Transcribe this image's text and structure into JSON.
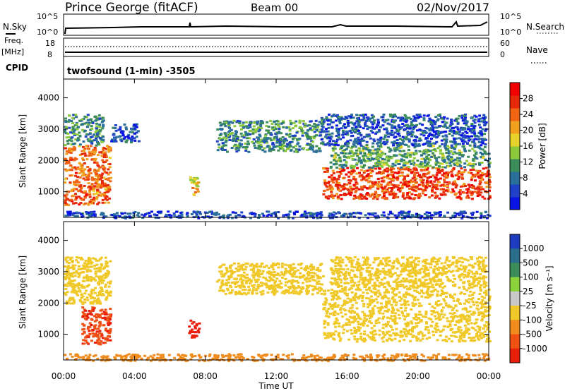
{
  "header": {
    "station": "Prince George (fitACF)",
    "beam": "Beam 00",
    "date": "02/Nov/2017"
  },
  "top_panels": {
    "nsky_label": "N.Sky",
    "nsearch_label": "N.Search",
    "noise_left_ticks": [
      "10^5",
      "10^0"
    ],
    "noise_right_ticks": [
      "10^5",
      "10^0"
    ],
    "freq_label_1": "Freq.",
    "freq_label_2": "[MHz]",
    "freq_ticks": [
      "18",
      "8"
    ],
    "nave_label": "Nave",
    "nave_ticks": [
      "60",
      "0"
    ],
    "cpid_label": "CPID",
    "cpid_text": "twofsound (1-min) -3505"
  },
  "chart_data": [
    {
      "type": "heatmap",
      "panel": "power",
      "ylabel": "Slant Range [km]",
      "xlabel": "Time UT",
      "yticks": [
        "1000",
        "2000",
        "3000",
        "4000"
      ],
      "ylim": [
        180,
        4600
      ],
      "colorbar_label": "Power [dB]",
      "colorbar_ticks": [
        "4",
        "8",
        "12",
        "16",
        "20",
        "24",
        "28"
      ],
      "colorscale": [
        "#0a14e6",
        "#2040c8",
        "#2a6e9a",
        "#3c8c5a",
        "#8cc83c",
        "#e6d228",
        "#f0a01e",
        "#f06414",
        "#e8280a",
        "#f00000"
      ],
      "regions": [
        {
          "t0": 0.0,
          "t1": 2.6,
          "r0": 600,
          "r1": 2500,
          "level": 24
        },
        {
          "t0": 0.0,
          "t1": 2.2,
          "r0": 2500,
          "r1": 3500,
          "level": 10
        },
        {
          "t0": 2.6,
          "t1": 4.2,
          "r0": 2600,
          "r1": 3200,
          "level": 6
        },
        {
          "t0": 7.0,
          "t1": 7.6,
          "r0": 900,
          "r1": 1500,
          "level": 18
        },
        {
          "t0": 8.6,
          "t1": 14.6,
          "r0": 2300,
          "r1": 3300,
          "level": 10
        },
        {
          "t0": 14.6,
          "t1": 24.0,
          "r0": 800,
          "r1": 1800,
          "level": 26
        },
        {
          "t0": 15.0,
          "t1": 24.0,
          "r0": 1800,
          "r1": 2500,
          "level": 12
        },
        {
          "t0": 14.5,
          "t1": 23.8,
          "r0": 2500,
          "r1": 3500,
          "level": 6
        },
        {
          "t0": 0.0,
          "t1": 24.0,
          "r0": 180,
          "r1": 400,
          "level": 5
        }
      ]
    },
    {
      "type": "heatmap",
      "panel": "velocity",
      "ylabel": "Slant Range [km]",
      "xlabel": "Time UT",
      "yticks": [
        "1000",
        "2000",
        "3000",
        "4000"
      ],
      "ylim": [
        180,
        4600
      ],
      "colorbar_label": "Velocity [m s⁻¹]",
      "colorbar_ticks": [
        "1000",
        "500",
        "100",
        "25",
        "-25",
        "-100",
        "-500",
        "-1000"
      ],
      "colorscale": [
        "#1e3cbe",
        "#2a6e8c",
        "#3c8c5a",
        "#8cd23c",
        "#c8c8c8",
        "#f0c828",
        "#f08c1e",
        "#f05014",
        "#e81e0a"
      ],
      "regions": [
        {
          "t0": 0.0,
          "t1": 2.6,
          "r0": 2000,
          "r1": 3500,
          "level": 0
        },
        {
          "t0": 1.0,
          "t1": 2.6,
          "r0": 700,
          "r1": 1900,
          "level": -450
        },
        {
          "t0": 7.0,
          "t1": 7.6,
          "r0": 900,
          "r1": 1500,
          "level": -800
        },
        {
          "t0": 8.6,
          "t1": 14.6,
          "r0": 2300,
          "r1": 3300,
          "level": 0
        },
        {
          "t0": 14.6,
          "t1": 24.0,
          "r0": 800,
          "r1": 2500,
          "level": 0
        },
        {
          "t0": 15.0,
          "t1": 23.8,
          "r0": 2500,
          "r1": 3500,
          "level": 0
        },
        {
          "t0": 0.0,
          "t1": 24.0,
          "r0": 180,
          "r1": 400,
          "level": -60
        }
      ]
    }
  ],
  "x_axis": {
    "label": "Time UT",
    "ticks": [
      "00:00",
      "04:00",
      "08:00",
      "12:00",
      "16:00",
      "20:00",
      "00:00"
    ]
  }
}
